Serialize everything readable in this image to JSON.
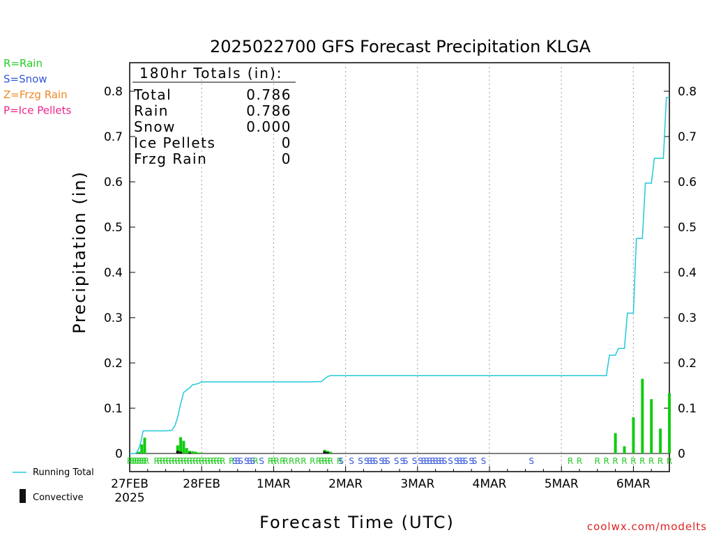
{
  "chart_data": {
    "type": "bar",
    "title": "2025022700 GFS Forecast Precipitation KLGA",
    "xlabel": "Forecast Time (UTC)",
    "ylabel": "Precipitation (in)",
    "ylim": [
      0,
      0.87
    ],
    "xlim_hours": [
      0,
      180
    ],
    "y_ticks": [
      0,
      0.1,
      0.2,
      0.3,
      0.4,
      0.5,
      0.6,
      0.7,
      0.8
    ],
    "y_tick_labels": [
      "0",
      "0.1",
      "0.2",
      "0.3",
      "0.4",
      "0.5",
      "0.6",
      "0.7",
      "0.8"
    ],
    "x_ticks": [
      {
        "label": "27FEB",
        "sublabel": "2025",
        "hour": 0
      },
      {
        "label": "28FEB",
        "hour": 24
      },
      {
        "label": "1MAR",
        "hour": 48
      },
      {
        "label": "2MAR",
        "hour": 72
      },
      {
        "label": "3MAR",
        "hour": 96
      },
      {
        "label": "4MAR",
        "hour": 120
      },
      {
        "label": "5MAR",
        "hour": 144
      },
      {
        "label": "6MAR",
        "hour": 168
      }
    ],
    "grid": "vertical dotted",
    "legend": {
      "placement": "top-left",
      "entries": [
        {
          "label": "R=Rain",
          "color": "#22cc22"
        },
        {
          "label": "S=Snow",
          "color": "#3355dd"
        },
        {
          "label": "Z=Frzg Rain",
          "color": "#ee8822"
        },
        {
          "label": "P=Ice Pellets",
          "color": "#ee2288"
        }
      ]
    },
    "bottom_legend": {
      "running_total": "Running Total",
      "convective": "Convective"
    },
    "totals_box": {
      "heading": "180hr Totals (in):",
      "rows": [
        {
          "label": "Total",
          "value": "0.786"
        },
        {
          "label": "Rain",
          "value": "0.786"
        },
        {
          "label": "Snow",
          "value": "0.000"
        },
        {
          "label": "Ice Pellets",
          "value": "0"
        },
        {
          "label": "Frzg Rain",
          "value": "0"
        }
      ]
    },
    "series": [
      {
        "name": "Running Total",
        "type": "line",
        "color": "#22c8d8",
        "x": [
          0,
          2,
          3,
          3.5,
          4.5,
          6,
          9,
          12,
          14,
          15,
          15.5,
          16,
          17,
          18,
          19,
          20,
          21,
          22,
          23,
          24,
          30,
          48,
          60,
          64,
          65,
          66,
          67,
          68,
          72,
          96,
          120,
          144,
          158,
          159,
          160,
          161,
          162,
          163,
          164,
          165,
          166,
          167,
          168,
          169,
          170,
          171,
          172,
          173,
          174,
          175,
          176,
          177,
          178,
          179,
          180
        ],
        "y": [
          0,
          0,
          0.01,
          0.02,
          0.05,
          0.05,
          0.05,
          0.05,
          0.051,
          0.06,
          0.07,
          0.08,
          0.11,
          0.135,
          0.14,
          0.145,
          0.152,
          0.153,
          0.155,
          0.158,
          0.158,
          0.158,
          0.158,
          0.159,
          0.165,
          0.17,
          0.172,
          0.172,
          0.172,
          0.172,
          0.172,
          0.172,
          0.172,
          0.172,
          0.217,
          0.217,
          0.217,
          0.232,
          0.232,
          0.232,
          0.31,
          0.31,
          0.31,
          0.475,
          0.475,
          0.475,
          0.597,
          0.597,
          0.597,
          0.652,
          0.652,
          0.652,
          0.652,
          0.786,
          0.786
        ]
      },
      {
        "name": "Precipitation",
        "type": "bar",
        "color": "#11cc11",
        "x": [
          3,
          4,
          5,
          16,
          17,
          18,
          19,
          20,
          21,
          22,
          23,
          24,
          65,
          66,
          67,
          162,
          165,
          168,
          171,
          174,
          177,
          180
        ],
        "y": [
          0.004,
          0.02,
          0.035,
          0.018,
          0.036,
          0.028,
          0.012,
          0.006,
          0.005,
          0.004,
          0.002,
          0.002,
          0.008,
          0.006,
          0.004,
          0.045,
          0.016,
          0.08,
          0.165,
          0.12,
          0.055,
          0.133
        ]
      },
      {
        "name": "Convective",
        "type": "bar",
        "color": "#111111",
        "x": [
          16,
          17,
          20,
          65,
          66
        ],
        "y": [
          0.006,
          0.004,
          0.002,
          0.005,
          0.003
        ]
      }
    ],
    "ptype_strip": {
      "rain": [
        0,
        0.8,
        1.6,
        2.4,
        3.2,
        4,
        4.8,
        5.6,
        9,
        10,
        11,
        12,
        13,
        14,
        15,
        16,
        17,
        18,
        19,
        20,
        21,
        22,
        23,
        24,
        25,
        26,
        27,
        28,
        29,
        30,
        31,
        34,
        42,
        47,
        48,
        49,
        51,
        52,
        54,
        56,
        58,
        61,
        63,
        64,
        65,
        66,
        67,
        70,
        147,
        150,
        156,
        159,
        162,
        165,
        168,
        171,
        174,
        177,
        180
      ],
      "snow": [
        35,
        36,
        37,
        39,
        40,
        41,
        44,
        70.5,
        74,
        77,
        79,
        80,
        81,
        82,
        84,
        85,
        86,
        89,
        91,
        92,
        95,
        97,
        98,
        99,
        100,
        101,
        102,
        103,
        104,
        105,
        107,
        109,
        110,
        111,
        112,
        114,
        115,
        118,
        134
      ]
    },
    "credit": "coolwx.com/modelts"
  }
}
